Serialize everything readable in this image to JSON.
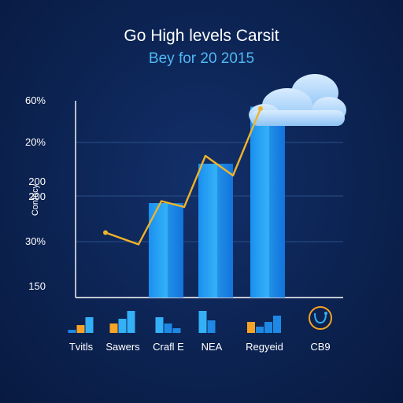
{
  "chart_data": {
    "type": "bar",
    "title": "Go High levels Carsit",
    "subtitle": "Bey for 20 2015",
    "ylabel": "Confacy",
    "y_tick_labels": [
      "60%",
      "20%",
      "200",
      "200",
      "30%",
      "150"
    ],
    "bars": [
      {
        "value": 0.48
      },
      {
        "value": 0.68
      },
      {
        "value": 0.97
      }
    ],
    "line": {
      "color": "#f0b429",
      "values": [
        0.33,
        0.27,
        0.49,
        0.46,
        0.72,
        0.62,
        0.96
      ]
    },
    "legend": [
      {
        "label": "Tvitls",
        "icon": "mini-bars-icon"
      },
      {
        "label": "Sawers",
        "icon": "mini-bars-icon"
      },
      {
        "label": "Crafl E",
        "icon": "mini-bars-icon"
      },
      {
        "label": "NEA",
        "icon": "mini-bars-icon"
      },
      {
        "label": "Regyeid",
        "icon": "mini-bars-icon"
      },
      {
        "label": "CB9",
        "icon": "stethoscope-icon"
      }
    ],
    "colors": {
      "bar_light": "#2fa8f0",
      "bar_dark": "#0f6fd6",
      "accent_orange": "#f7a325",
      "axis": "#ffffff",
      "grid": "#2a4f86"
    },
    "grid": true,
    "decoration": "cloud-icon"
  }
}
